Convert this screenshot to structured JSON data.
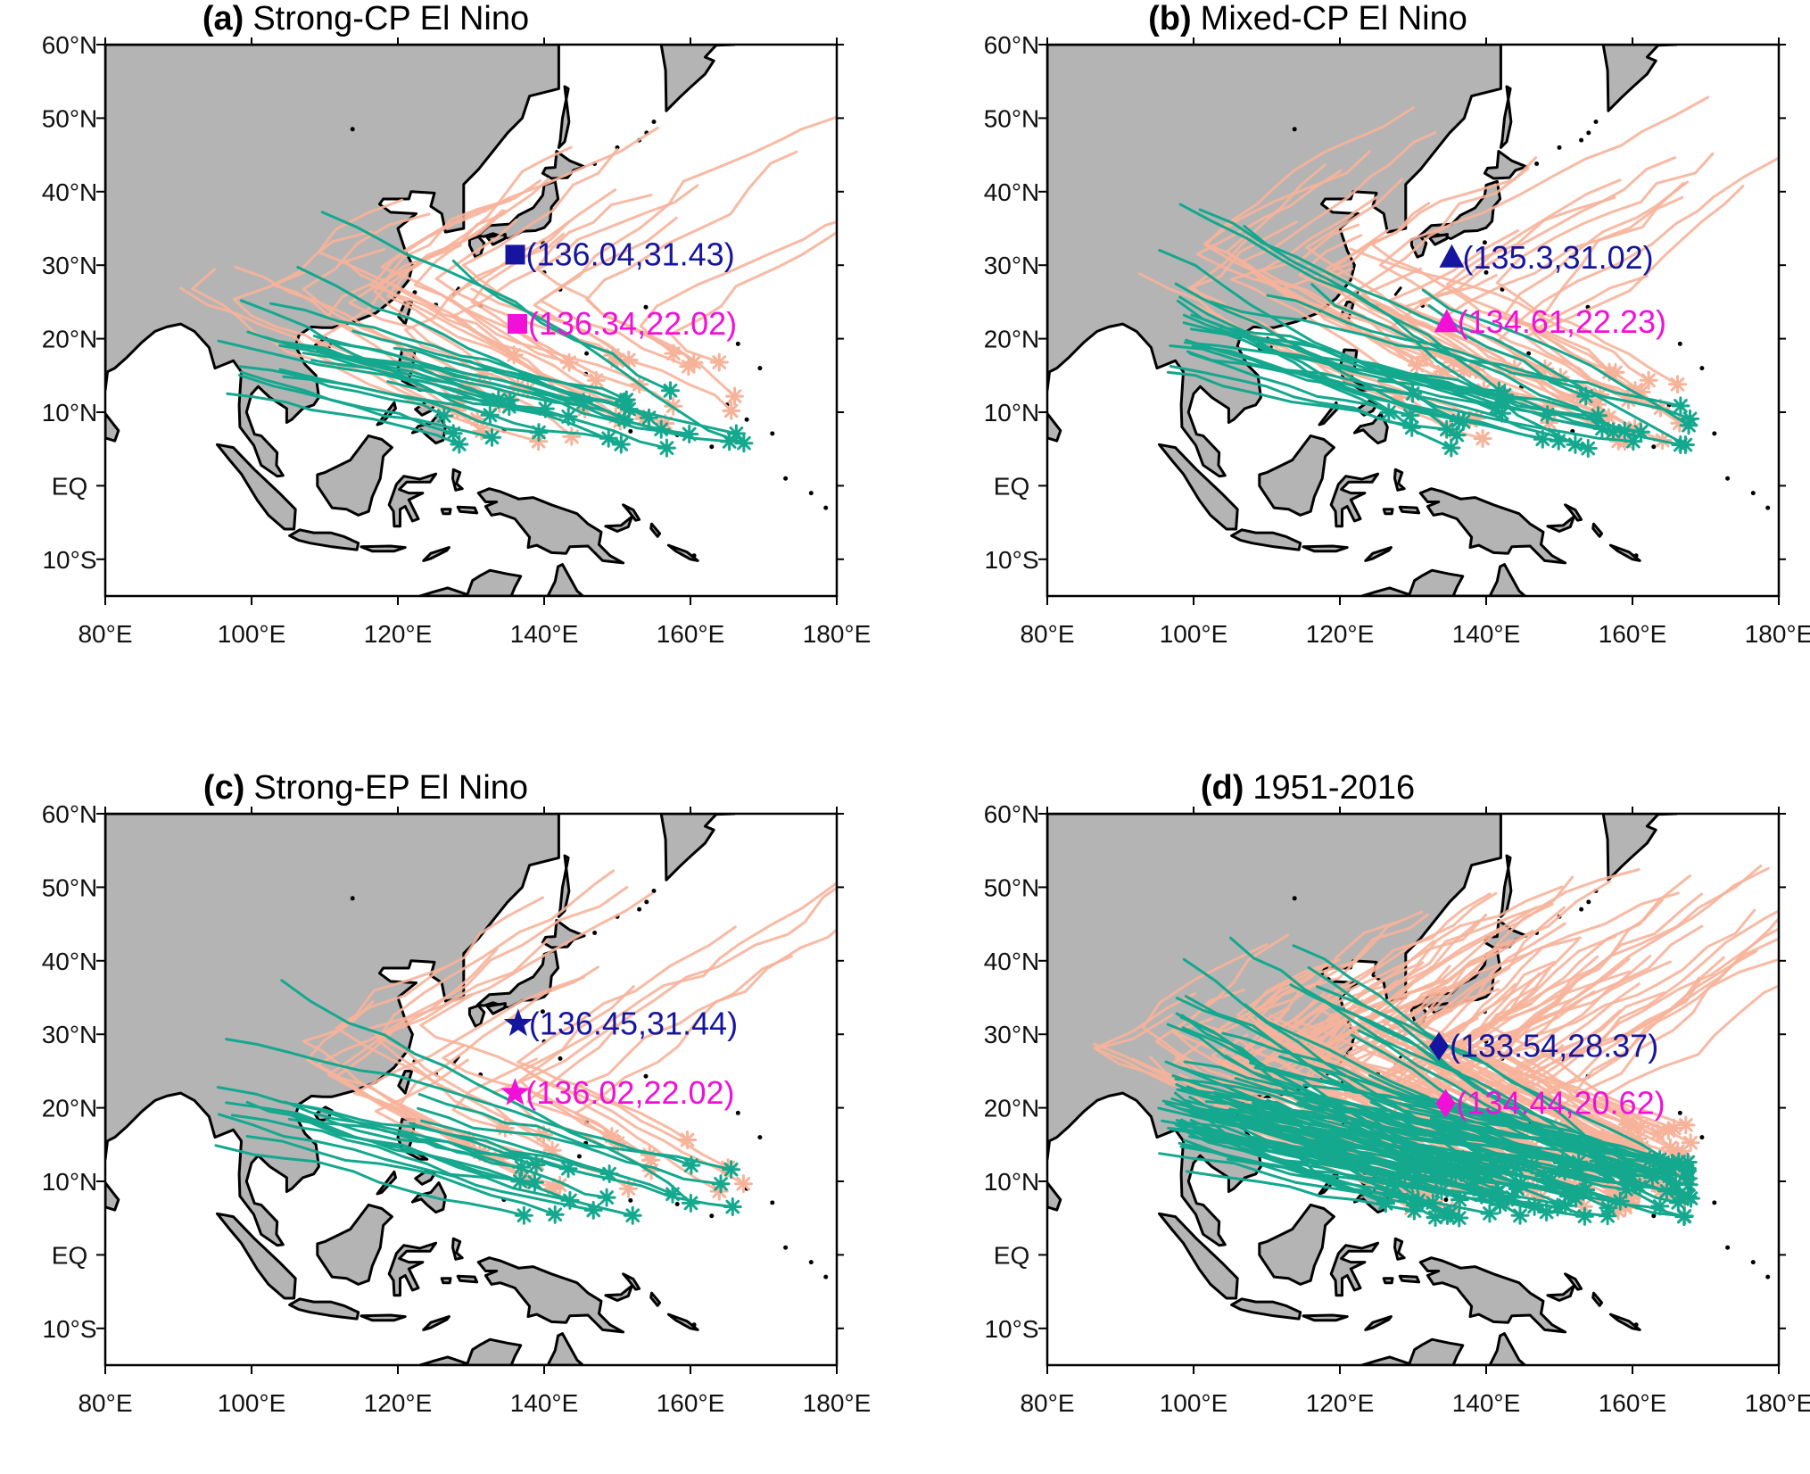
{
  "figure": {
    "colors": {
      "land": "#b4b4b4",
      "coast": "#000000",
      "track_early": "#14a88e",
      "track_late": "#f7b39a",
      "center_early": "#1515a0",
      "center_late": "#f010d8"
    },
    "axes": {
      "lon_ticks": [
        "80°E",
        "100°E",
        "120°E",
        "140°E",
        "160°E",
        "180°E"
      ],
      "lat_ticks": [
        "60°N",
        "50°N",
        "40°N",
        "30°N",
        "20°N",
        "10°N",
        "EQ",
        "10°S"
      ],
      "lon_range": [
        80,
        180
      ],
      "lat_range": [
        -15,
        60
      ]
    },
    "panels": [
      {
        "label": "(a)",
        "title": "Strong-CP El Nino",
        "marker": "square",
        "density": 1,
        "centers": [
          {
            "text": "(136.04,31.43)",
            "lon": 136.04,
            "lat": 31.43,
            "kind": "early"
          },
          {
            "text": "(136.34,22.02)",
            "lon": 136.34,
            "lat": 22.02,
            "kind": "late"
          }
        ]
      },
      {
        "label": "(b)",
        "title": "Mixed-CP El Nino",
        "marker": "triangle",
        "density": 1.2,
        "centers": [
          {
            "text": "(135.3,31.02)",
            "lon": 135.3,
            "lat": 31.02,
            "kind": "early"
          },
          {
            "text": "(134.61,22.23)",
            "lon": 134.61,
            "lat": 22.23,
            "kind": "late"
          }
        ]
      },
      {
        "label": "(c)",
        "title": "Strong-EP El Nino",
        "marker": "star",
        "density": 0.7,
        "centers": [
          {
            "text": "(136.45,31.44)",
            "lon": 136.45,
            "lat": 31.44,
            "kind": "early"
          },
          {
            "text": "(136.02,22.02)",
            "lon": 136.02,
            "lat": 22.02,
            "kind": "late"
          }
        ]
      },
      {
        "label": "(d)",
        "title": "1951-2016",
        "marker": "diamond",
        "density": 4,
        "centers": [
          {
            "text": "(133.54,28.37)",
            "lon": 133.54,
            "lat": 28.37,
            "kind": "early"
          },
          {
            "text": "(134.44,20.62)",
            "lon": 134.44,
            "lat": 20.62,
            "kind": "late"
          }
        ]
      }
    ]
  }
}
